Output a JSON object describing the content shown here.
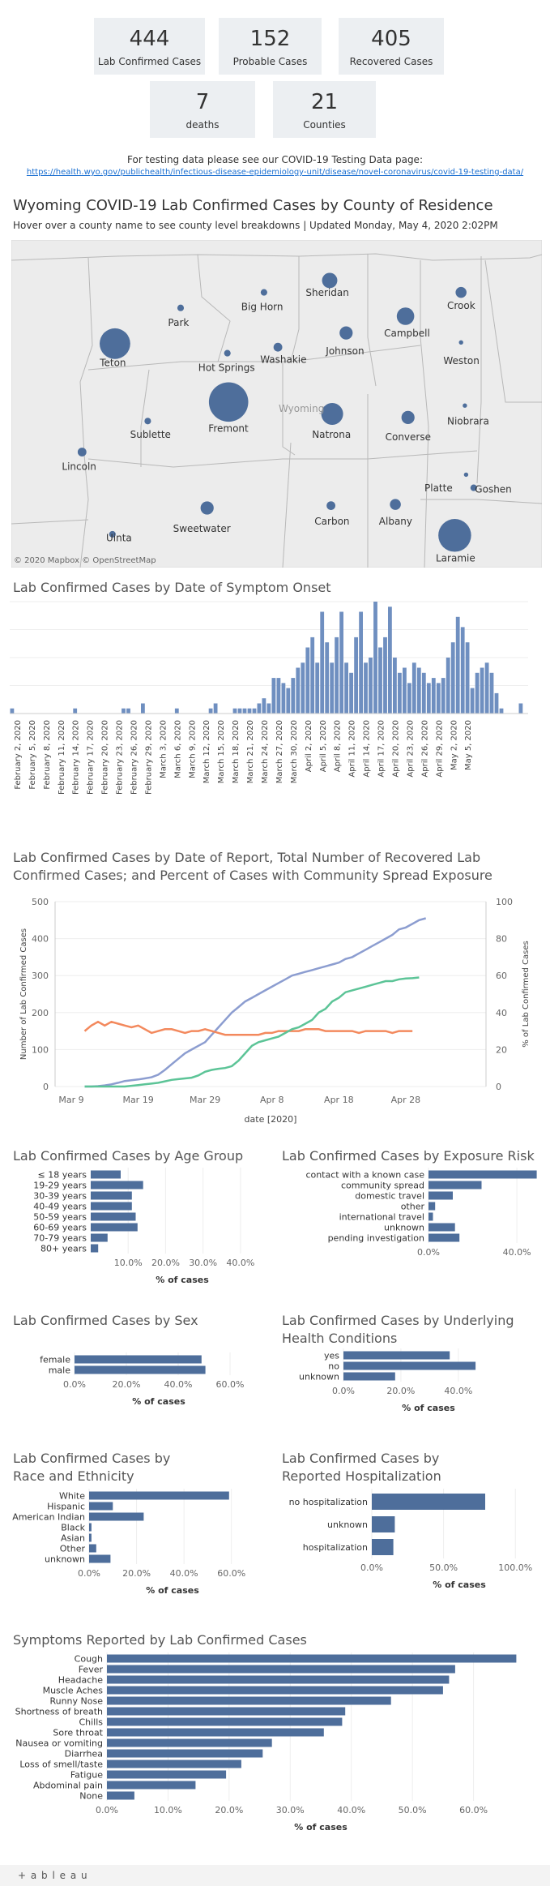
{
  "kpis": {
    "confirmed": {
      "value": "444",
      "label": "Lab Confirmed Cases"
    },
    "probable": {
      "value": "152",
      "label": "Probable Cases"
    },
    "recovered": {
      "value": "405",
      "label": "Recovered Cases"
    },
    "deaths": {
      "value": "7",
      "label": "deaths"
    },
    "counties": {
      "value": "21",
      "label": "Counties"
    }
  },
  "testing_note": "For testing data please see our COVID-19 Testing Data page:",
  "testing_link": "https://health.wyo.gov/publichealth/infectious-disease-epidemiology-unit/disease/novel-coronavirus/covid-19-testing-data/",
  "map": {
    "title": "Wyoming COVID-19 Lab Confirmed Cases by County of Residence",
    "subtitle": "Hover over a county name to see county level breakdowns | Updated Monday, May 4, 2020 2:02PM",
    "state_label": "Wyoming",
    "attribution": "© 2020 Mapbox © OpenStreetMap",
    "counties": [
      "Park",
      "Big Horn",
      "Sheridan",
      "Crook",
      "Teton",
      "Hot Springs",
      "Washakie",
      "Johnson",
      "Campbell",
      "Weston",
      "Fremont",
      "Sublette",
      "Natrona",
      "Converse",
      "Niobrara",
      "Lincoln",
      "Sweetwater",
      "Carbon",
      "Albany",
      "Platte",
      "Goshen",
      "Laramie",
      "Uinta"
    ]
  },
  "chart_data": [
    {
      "type": "bar",
      "title": "Lab Confirmed Cases by Date of Symptom Onset",
      "x_tick_labels": [
        "February 2, 2020",
        "February 5, 2020",
        "February 8, 2020",
        "February 11, 2020",
        "February 14, 2020",
        "February 17, 2020",
        "February 20, 2020",
        "February 23, 2020",
        "February 26, 2020",
        "February 29, 2020",
        "March 3, 2020",
        "March 6, 2020",
        "March 9, 2020",
        "March 12, 2020",
        "March 15, 2020",
        "March 18, 2020",
        "March 21, 2020",
        "March 24, 2020",
        "March 27, 2020",
        "March 30, 2020",
        "April 2, 2020",
        "April 5, 2020",
        "April 8, 2020",
        "April 11, 2020",
        "April 14, 2020",
        "April 17, 2020",
        "April 20, 2020",
        "April 23, 2020",
        "April 26, 2020",
        "April 29, 2020",
        "May 2, 2020",
        "May 5, 2020"
      ],
      "start_date": "2020-02-01",
      "values": [
        1,
        0,
        0,
        0,
        0,
        0,
        0,
        0,
        0,
        0,
        0,
        0,
        0,
        1,
        0,
        0,
        0,
        0,
        0,
        0,
        0,
        0,
        0,
        1,
        1,
        0,
        0,
        2,
        0,
        0,
        0,
        0,
        0,
        0,
        1,
        0,
        0,
        0,
        0,
        0,
        0,
        1,
        2,
        0,
        0,
        0,
        1,
        1,
        1,
        1,
        1,
        2,
        3,
        2,
        7,
        7,
        6,
        5,
        7,
        9,
        10,
        13,
        15,
        10,
        20,
        14,
        10,
        15,
        20,
        10,
        8,
        15,
        20,
        10,
        11,
        22,
        13,
        15,
        21,
        11,
        8,
        9,
        6,
        10,
        9,
        8,
        6,
        7,
        6,
        7,
        11,
        14,
        19,
        17,
        14,
        5,
        8,
        9,
        10,
        8,
        4,
        1,
        0,
        0,
        0,
        2,
        0
      ],
      "ylim": [
        0,
        22
      ],
      "grid": true
    },
    {
      "type": "line",
      "title": "Lab Confirmed Cases by Date of Report, Total Number of Recovered Lab Confirmed Cases; and Percent of Cases with Community Spread Exposure",
      "xlabel": "date [2020]",
      "ylabel_left": "Number of Lab Confirmed Cases",
      "ylabel_right": "% of Lab Confirmed Cases",
      "x_ticks": [
        "Mar 9",
        "Mar 19",
        "Mar 29",
        "Apr 8",
        "Apr 18",
        "Apr 28"
      ],
      "y_left_ticks": [
        0,
        100,
        200,
        300,
        400,
        500
      ],
      "y_right_ticks": [
        0,
        20,
        40,
        60,
        80,
        100
      ],
      "ylim_left": [
        0,
        500
      ],
      "ylim_right": [
        0,
        100
      ],
      "x_start": "2020-03-11",
      "series": [
        {
          "color": "#8c9dd0",
          "axis": "left",
          "values": [
            0,
            0,
            1,
            3,
            6,
            10,
            15,
            17,
            19,
            22,
            25,
            32,
            45,
            60,
            75,
            90,
            100,
            110,
            120,
            140,
            160,
            180,
            200,
            215,
            230,
            240,
            250,
            260,
            270,
            280,
            290,
            300,
            305,
            310,
            315,
            320,
            325,
            330,
            335,
            345,
            350,
            360,
            370,
            380,
            390,
            400,
            410,
            425,
            430,
            440,
            450,
            455
          ]
        },
        {
          "color": "#f3895d",
          "axis": "right",
          "values": [
            30,
            33,
            35,
            33,
            35,
            34,
            33,
            32,
            33,
            31,
            29,
            30,
            31,
            31,
            30,
            29,
            30,
            30,
            31,
            30,
            29,
            28,
            28,
            28,
            28,
            28,
            28,
            29,
            29,
            30,
            30,
            30,
            30,
            31,
            31,
            31,
            30,
            30,
            30,
            30,
            30,
            29,
            30,
            30,
            30,
            30,
            29,
            30,
            30,
            30
          ]
        },
        {
          "color": "#5cc497",
          "axis": "left",
          "values": [
            0,
            0,
            0,
            0,
            0,
            0,
            0,
            2,
            4,
            6,
            8,
            10,
            14,
            18,
            20,
            22,
            24,
            30,
            40,
            45,
            48,
            50,
            55,
            70,
            90,
            110,
            120,
            125,
            130,
            135,
            145,
            155,
            160,
            170,
            180,
            200,
            210,
            230,
            240,
            255,
            260,
            265,
            270,
            275,
            280,
            285,
            285,
            290,
            292,
            293,
            295
          ]
        }
      ]
    },
    {
      "type": "bar",
      "title": "Lab Confirmed Cases by Age Group",
      "xlabel": "% of cases",
      "categories": [
        "≤ 18 years",
        "19-29 years",
        "30-39 years",
        "40-49 years",
        "50-59 years",
        "60-69 years",
        "70-79 years",
        "80+ years"
      ],
      "values": [
        8.0,
        14.0,
        11.0,
        11.0,
        12.0,
        12.5,
        4.5,
        2.0
      ],
      "x_ticks": [
        "10.0%",
        "20.0%",
        "30.0%",
        "40.0%"
      ],
      "xlim": [
        0,
        45
      ]
    },
    {
      "type": "bar",
      "title": "Lab Confirmed Cases by Exposure Risk",
      "xlabel": "",
      "categories": [
        "contact with a known case",
        "community spread",
        "domestic travel",
        "other",
        "international travel",
        "unknown",
        "pending investigation"
      ],
      "values": [
        49,
        24,
        11,
        3,
        2,
        12,
        14
      ],
      "x_ticks": [
        "0.0%",
        "40.0%"
      ],
      "xlim": [
        0,
        55
      ]
    },
    {
      "type": "bar",
      "title": "Lab Confirmed Cases by Sex",
      "xlabel": "% of cases",
      "categories": [
        "female",
        "male"
      ],
      "values": [
        49,
        50.5
      ],
      "x_ticks": [
        "0.0%",
        "20.0%",
        "40.0%",
        "60.0%"
      ],
      "xlim": [
        0,
        65
      ]
    },
    {
      "type": "bar",
      "title": "Lab Confirmed Cases by Underlying Health Conditions",
      "xlabel": "% of cases",
      "categories": [
        "yes",
        "no",
        "unknown"
      ],
      "values": [
        37,
        46,
        18
      ],
      "x_ticks": [
        "0.0%",
        "20.0%",
        "40.0%"
      ],
      "xlim": [
        0,
        55
      ]
    },
    {
      "type": "bar",
      "title": "Lab Confirmed Cases by Race and Ethnicity",
      "xlabel": "% of cases",
      "categories": [
        "White",
        "Hispanic",
        "American Indian",
        "Black",
        "Asian",
        "Other",
        "unknown"
      ],
      "values": [
        59,
        10,
        23,
        1,
        1,
        3,
        9
      ],
      "x_ticks": [
        "0.0%",
        "20.0%",
        "40.0%",
        "60.0%"
      ],
      "xlim": [
        0,
        70
      ]
    },
    {
      "type": "bar",
      "title": "Lab Confirmed Cases by Reported Hospitalization",
      "xlabel": "% of cases",
      "categories": [
        "no hospitalization",
        "unknown",
        "hospitalization"
      ],
      "values": [
        79,
        16,
        15
      ],
      "x_ticks": [
        "0.0%",
        "50.0%",
        "100.0%"
      ],
      "xlim": [
        0,
        110
      ]
    },
    {
      "type": "bar",
      "title": "Symptoms Reported by Lab Confirmed Cases",
      "xlabel": "% of cases",
      "categories": [
        "Cough",
        "Fever",
        "Headache",
        "Muscle Aches",
        "Runny Nose",
        "Shortness of breath",
        "Chills",
        "Sore throat",
        "Nausea or vomiting",
        "Diarrhea",
        "Loss of smell/taste",
        "Fatigue",
        "Abdominal pain",
        "None"
      ],
      "values": [
        67,
        57,
        56,
        55,
        46.5,
        39,
        38.5,
        35.5,
        27,
        25.5,
        22,
        19.5,
        14.5,
        4.5
      ],
      "x_ticks": [
        "0.0%",
        "10.0%",
        "20.0%",
        "30.0%",
        "40.0%",
        "50.0%",
        "60.0%"
      ],
      "xlim": [
        0,
        70
      ]
    }
  ],
  "colors": {
    "bar": "#4e6e9b",
    "kpi_bg": "#eceff2",
    "link": "#1a6fd1"
  },
  "footer": {
    "logo": "+ a b l e a u"
  }
}
